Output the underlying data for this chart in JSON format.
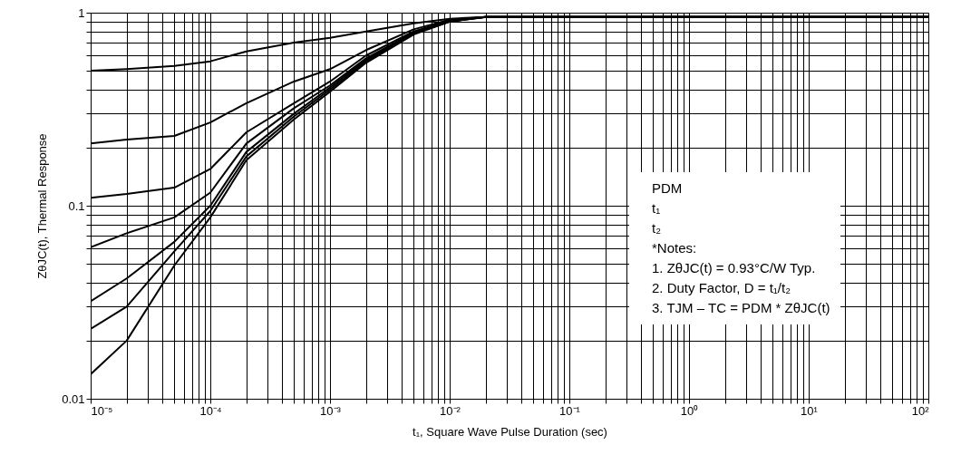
{
  "chart_data": {
    "type": "line",
    "xlabel": "t₁, Square Wave Pulse Duration (sec)",
    "ylabel": "ZθJC(t), Thermal Response",
    "log": "xy",
    "grid": true,
    "legend": false,
    "marker": "none",
    "line_style": "solid",
    "xlim": [
      1e-05,
      100
    ],
    "ylim": [
      0.01,
      1
    ],
    "xticks": [
      {
        "value": 1e-05,
        "label": "10⁻⁵"
      },
      {
        "value": 2e-05,
        "label": null
      },
      {
        "value": 3e-05,
        "label": null
      },
      {
        "value": 4e-05,
        "label": null
      },
      {
        "value": 5e-05,
        "label": null
      },
      {
        "value": 6e-05,
        "label": null
      },
      {
        "value": 7e-05,
        "label": null
      },
      {
        "value": 8e-05,
        "label": null
      },
      {
        "value": 9e-05,
        "label": null
      },
      {
        "value": 0.0001,
        "label": "10⁻⁴"
      },
      {
        "value": 0.0002,
        "label": null
      },
      {
        "value": 0.0003,
        "label": null
      },
      {
        "value": 0.0004,
        "label": null
      },
      {
        "value": 0.0005,
        "label": null
      },
      {
        "value": 0.0006,
        "label": null
      },
      {
        "value": 0.0007,
        "label": null
      },
      {
        "value": 0.0008,
        "label": null
      },
      {
        "value": 0.0009,
        "label": null
      },
      {
        "value": 0.001,
        "label": "10⁻³"
      },
      {
        "value": 0.002,
        "label": null
      },
      {
        "value": 0.003,
        "label": null
      },
      {
        "value": 0.004,
        "label": null
      },
      {
        "value": 0.005,
        "label": null
      },
      {
        "value": 0.006,
        "label": null
      },
      {
        "value": 0.007,
        "label": null
      },
      {
        "value": 0.008,
        "label": null
      },
      {
        "value": 0.009,
        "label": null
      },
      {
        "value": 0.01,
        "label": "10⁻²"
      },
      {
        "value": 0.02,
        "label": null
      },
      {
        "value": 0.03,
        "label": null
      },
      {
        "value": 0.04,
        "label": null
      },
      {
        "value": 0.05,
        "label": null
      },
      {
        "value": 0.06,
        "label": null
      },
      {
        "value": 0.07,
        "label": null
      },
      {
        "value": 0.08,
        "label": null
      },
      {
        "value": 0.09,
        "label": null
      },
      {
        "value": 0.1,
        "label": "10⁻¹"
      },
      {
        "value": 0.2,
        "label": null
      },
      {
        "value": 0.3,
        "label": null
      },
      {
        "value": 0.4,
        "label": null
      },
      {
        "value": 0.5,
        "label": null
      },
      {
        "value": 0.6,
        "label": null
      },
      {
        "value": 0.7,
        "label": null
      },
      {
        "value": 0.8,
        "label": null
      },
      {
        "value": 0.9,
        "label": null
      },
      {
        "value": 1,
        "label": "10⁰"
      },
      {
        "value": 2,
        "label": null
      },
      {
        "value": 3,
        "label": null
      },
      {
        "value": 4,
        "label": null
      },
      {
        "value": 5,
        "label": null
      },
      {
        "value": 6,
        "label": null
      },
      {
        "value": 7,
        "label": null
      },
      {
        "value": 8,
        "label": null
      },
      {
        "value": 9,
        "label": null
      },
      {
        "value": 10,
        "label": "10¹"
      },
      {
        "value": 20,
        "label": null
      },
      {
        "value": 30,
        "label": null
      },
      {
        "value": 40,
        "label": null
      },
      {
        "value": 50,
        "label": null
      },
      {
        "value": 60,
        "label": null
      },
      {
        "value": 70,
        "label": null
      },
      {
        "value": 80,
        "label": null
      },
      {
        "value": 90,
        "label": null
      },
      {
        "value": 100,
        "label": "10²"
      }
    ],
    "yticks": [
      0.01,
      {
        "value": 0.02,
        "label": null
      },
      {
        "value": 0.03,
        "label": null
      },
      {
        "value": 0.04,
        "label": null
      },
      {
        "value": 0.05,
        "label": null
      },
      {
        "value": 0.06,
        "label": null
      },
      {
        "value": 0.07,
        "label": null
      },
      {
        "value": 0.08,
        "label": null
      },
      {
        "value": 0.09,
        "label": null
      },
      0.1,
      {
        "value": 0.2,
        "label": null
      },
      {
        "value": 0.3,
        "label": null
      },
      {
        "value": 0.4,
        "label": null
      },
      {
        "value": 0.5,
        "label": null
      },
      {
        "value": 0.6,
        "label": null
      },
      {
        "value": 0.7,
        "label": null
      },
      {
        "value": 0.8,
        "label": null
      },
      {
        "value": 0.9,
        "label": null
      },
      1
    ],
    "x": [
      1e-05,
      2e-05,
      5e-05,
      0.0001,
      0.0002,
      0.0005,
      0.001,
      0.002,
      0.005,
      0.01,
      0.02,
      0.1,
      1,
      10,
      100
    ],
    "series": [
      {
        "color": "#000000",
        "values": [
          0.5,
          0.51,
          0.53,
          0.56,
          0.63,
          0.7,
          0.74,
          0.8,
          0.88,
          0.93,
          0.95,
          0.95,
          0.95,
          0.95,
          0.95
        ]
      },
      {
        "color": "#000000",
        "values": [
          0.21,
          0.22,
          0.23,
          0.27,
          0.34,
          0.44,
          0.51,
          0.64,
          0.82,
          0.92,
          0.95,
          0.95,
          0.95,
          0.95,
          0.95
        ]
      },
      {
        "color": "#000000",
        "values": [
          0.11,
          0.115,
          0.124,
          0.155,
          0.24,
          0.34,
          0.44,
          0.6,
          0.8,
          0.91,
          0.95,
          0.95,
          0.95,
          0.95,
          0.95
        ]
      },
      {
        "color": "#000000",
        "values": [
          0.061,
          0.072,
          0.087,
          0.117,
          0.21,
          0.32,
          0.42,
          0.58,
          0.79,
          0.91,
          0.95,
          0.95,
          0.95,
          0.95,
          0.95
        ]
      },
      {
        "color": "#000000",
        "values": [
          0.032,
          0.042,
          0.065,
          0.1,
          0.19,
          0.3,
          0.41,
          0.57,
          0.78,
          0.9,
          0.95,
          0.95,
          0.95,
          0.95,
          0.95
        ]
      },
      {
        "color": "#000000",
        "values": [
          0.023,
          0.03,
          0.058,
          0.094,
          0.18,
          0.29,
          0.4,
          0.56,
          0.78,
          0.9,
          0.95,
          0.95,
          0.95,
          0.95,
          0.95
        ]
      },
      {
        "color": "#000000",
        "values": [
          0.0134,
          0.02,
          0.049,
          0.087,
          0.172,
          0.28,
          0.39,
          0.55,
          0.77,
          0.9,
          0.95,
          0.95,
          0.95,
          0.95,
          0.95
        ]
      }
    ],
    "annotations": [
      "PDM",
      "t₁",
      "t₂",
      "*Notes:",
      "1. ZθJC(t) = 0.93°C/W Typ.",
      "2. Duty Factor, D = t₁/t₂",
      "3. TJM – TC = PDM * ZθJC(t)"
    ]
  }
}
